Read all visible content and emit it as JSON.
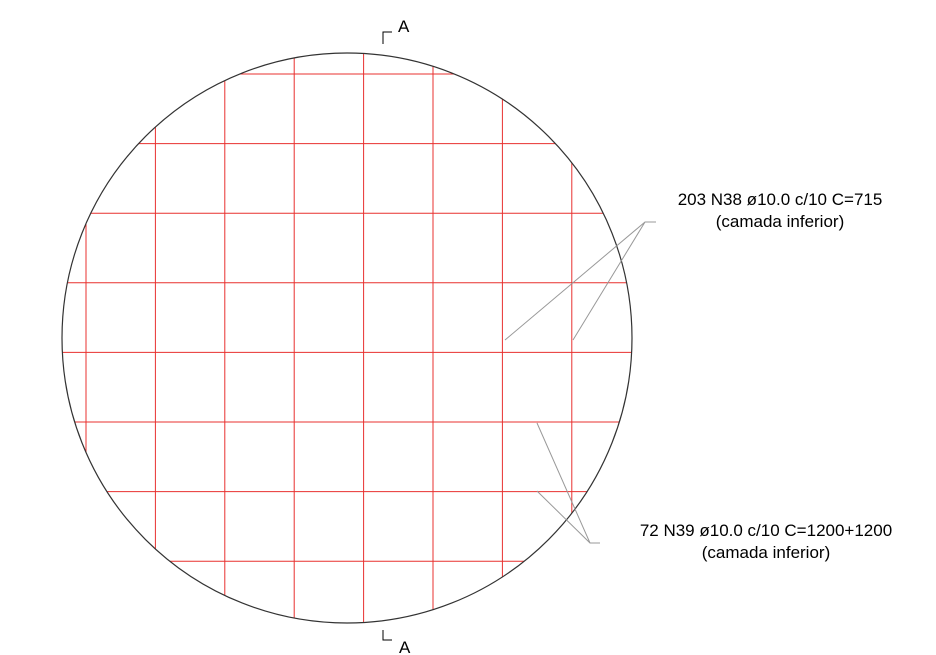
{
  "section_marks": {
    "top": "A",
    "bottom": "A"
  },
  "annotations": [
    {
      "line1": "203 N38 ø10.0 c/10 C=715",
      "line2": "(camada inferior)"
    },
    {
      "line1": "72 N39 ø10.0 c/10 C=1200+1200",
      "line2": "(camada inferior)"
    }
  ]
}
